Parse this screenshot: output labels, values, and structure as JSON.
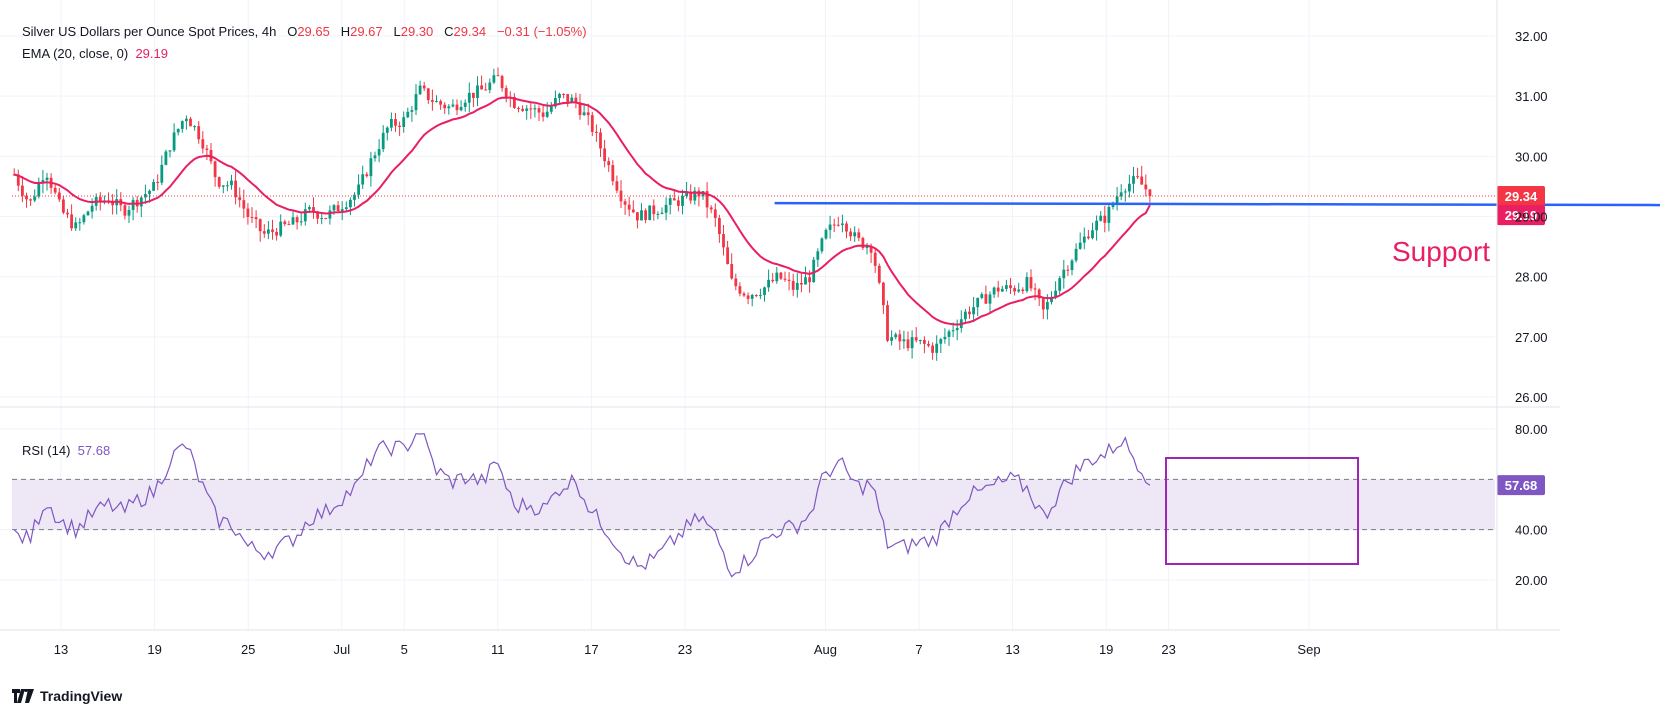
{
  "price_legend": {
    "symbol": "Silver US Dollars per Ounce Spot Prices, 4h",
    "open_label": "O",
    "open": "29.65",
    "high_label": "H",
    "high": "29.67",
    "low_label": "L",
    "low": "29.30",
    "close_label": "C",
    "close": "29.34",
    "change": "−0.31 (−1.05%)"
  },
  "ema_legend": {
    "label": "EMA (20, close, 0)",
    "value": "29.19"
  },
  "rsi_legend": {
    "label": "RSI (14)",
    "value": "57.68"
  },
  "annotation": {
    "support_text": "Support"
  },
  "brand": {
    "name": "TradingView"
  },
  "colors": {
    "up": "#089981",
    "down": "#f23645",
    "ema": "#e91e63",
    "rsi": "#7e57c2",
    "support": "#2962ff",
    "rsi_band": "#ede7f6",
    "box": "#9c27b0"
  },
  "chart_data": [
    {
      "type": "candlestick",
      "title": "Silver US Dollars per Ounce Spot Prices, 4h",
      "x_ticks": [
        "13",
        "19",
        "25",
        "Jul",
        "5",
        "11",
        "17",
        "23",
        "Aug",
        "7",
        "13",
        "19",
        "23",
        "Sep"
      ],
      "y_ticks": [
        "26.00",
        "27.00",
        "28.00",
        "29.00",
        "30.00",
        "31.00",
        "32.00"
      ],
      "ylim": [
        26,
        32
      ],
      "last_price": "29.34",
      "ema_last": "29.19",
      "support_level": 29.19,
      "price_path": [
        [
          "Jun 10",
          29.7
        ],
        [
          "Jun 11",
          29.2
        ],
        [
          "Jun 12",
          29.8
        ],
        [
          "Jun 13",
          29.1
        ],
        [
          "Jun 14",
          28.8
        ],
        [
          "Jun 15",
          29.2
        ],
        [
          "Jun 16",
          29.3
        ],
        [
          "Jun 17",
          29.1
        ],
        [
          "Jun 18",
          29.3
        ],
        [
          "Jun 19",
          29.5
        ],
        [
          "Jun 20",
          30.2
        ],
        [
          "Jun 21",
          30.7
        ],
        [
          "Jun 22",
          30.3
        ],
        [
          "Jun 23",
          29.6
        ],
        [
          "Jun 24",
          29.5
        ],
        [
          "Jun 25",
          29.0
        ],
        [
          "Jun 26",
          28.7
        ],
        [
          "Jun 27",
          28.8
        ],
        [
          "Jun 28",
          28.9
        ],
        [
          "Jun 29",
          29.1
        ],
        [
          "Jun 30",
          29.0
        ],
        [
          "Jul 1",
          29.2
        ],
        [
          "Jul 2",
          29.4
        ],
        [
          "Jul 3",
          30.0
        ],
        [
          "Jul 4",
          30.5
        ],
        [
          "Jul 5",
          30.6
        ],
        [
          "Jul 6",
          31.1
        ],
        [
          "Jul 7",
          30.9
        ],
        [
          "Jul 8",
          30.8
        ],
        [
          "Jul 9",
          31.0
        ],
        [
          "Jul 10",
          31.1
        ],
        [
          "Jul 11",
          31.3
        ],
        [
          "Jul 12",
          30.9
        ],
        [
          "Jul 13",
          30.8
        ],
        [
          "Jul 14",
          30.7
        ],
        [
          "Jul 15",
          31.0
        ],
        [
          "Jul 16",
          30.9
        ],
        [
          "Jul 17",
          30.5
        ],
        [
          "Jul 18",
          29.9
        ],
        [
          "Jul 19",
          29.3
        ],
        [
          "Jul 20",
          29.0
        ],
        [
          "Jul 21",
          29.1
        ],
        [
          "Jul 22",
          29.2
        ],
        [
          "Jul 23",
          29.3
        ],
        [
          "Jul 24",
          29.4
        ],
        [
          "Jul 25",
          28.9
        ],
        [
          "Jul 26",
          27.9
        ],
        [
          "Jul 27",
          27.7
        ],
        [
          "Jul 28",
          27.8
        ],
        [
          "Jul 29",
          28.0
        ],
        [
          "Jul 30",
          27.8
        ],
        [
          "Jul 31",
          28.0
        ],
        [
          "Aug 1",
          28.7
        ],
        [
          "Aug 2",
          29.0
        ],
        [
          "Aug 3",
          28.6
        ],
        [
          "Aug 4",
          28.5
        ],
        [
          "Aug 5",
          27.0
        ],
        [
          "Aug 6",
          26.9
        ],
        [
          "Aug 7",
          26.9
        ],
        [
          "Aug 8",
          26.8
        ],
        [
          "Aug 9",
          27.1
        ],
        [
          "Aug 10",
          27.4
        ],
        [
          "Aug 11",
          27.6
        ],
        [
          "Aug 12",
          27.8
        ],
        [
          "Aug 13",
          27.8
        ],
        [
          "Aug 14",
          27.9
        ],
        [
          "Aug 15",
          27.4
        ],
        [
          "Aug 16",
          28.0
        ],
        [
          "Aug 17",
          28.4
        ],
        [
          "Aug 18",
          28.8
        ],
        [
          "Aug 19",
          29.0
        ],
        [
          "Aug 20",
          29.5
        ],
        [
          "Aug 21",
          29.6
        ],
        [
          "Aug 22",
          29.34
        ]
      ]
    },
    {
      "type": "line",
      "title": "RSI (14)",
      "y_ticks": [
        "20.00",
        "40.00",
        "80.00"
      ],
      "ylim": [
        15,
        85
      ],
      "band": [
        40,
        60
      ],
      "last_value": "57.68",
      "rsi_path": [
        [
          "Jun 10",
          38
        ],
        [
          "Jun 11",
          36
        ],
        [
          "Jun 12",
          52
        ],
        [
          "Jun 13",
          43
        ],
        [
          "Jun 14",
          40
        ],
        [
          "Jun 15",
          46
        ],
        [
          "Jun 16",
          50
        ],
        [
          "Jun 17",
          47
        ],
        [
          "Jun 18",
          52
        ],
        [
          "Jun 19",
          55
        ],
        [
          "Jun 20",
          68
        ],
        [
          "Jun 21",
          74
        ],
        [
          "Jun 22",
          58
        ],
        [
          "Jun 23",
          44
        ],
        [
          "Jun 24",
          42
        ],
        [
          "Jun 25",
          33
        ],
        [
          "Jun 26",
          31
        ],
        [
          "Jun 27",
          33
        ],
        [
          "Jun 28",
          37
        ],
        [
          "Jun 29",
          45
        ],
        [
          "Jun 30",
          47
        ],
        [
          "Jul 1",
          53
        ],
        [
          "Jul 2",
          57
        ],
        [
          "Jul 3",
          70
        ],
        [
          "Jul 4",
          73
        ],
        [
          "Jul 5",
          72
        ],
        [
          "Jul 6",
          80
        ],
        [
          "Jul 7",
          64
        ],
        [
          "Jul 8",
          59
        ],
        [
          "Jul 9",
          61
        ],
        [
          "Jul 10",
          59
        ],
        [
          "Jul 11",
          67
        ],
        [
          "Jul 12",
          49
        ],
        [
          "Jul 13",
          50
        ],
        [
          "Jul 14",
          48
        ],
        [
          "Jul 15",
          57
        ],
        [
          "Jul 16",
          60
        ],
        [
          "Jul 17",
          47
        ],
        [
          "Jul 18",
          40
        ],
        [
          "Jul 19",
          31
        ],
        [
          "Jul 20",
          25
        ],
        [
          "Jul 21",
          28
        ],
        [
          "Jul 22",
          34
        ],
        [
          "Jul 23",
          40
        ],
        [
          "Jul 24",
          45
        ],
        [
          "Jul 25",
          37
        ],
        [
          "Jul 26",
          24
        ],
        [
          "Jul 27",
          28
        ],
        [
          "Jul 28",
          35
        ],
        [
          "Jul 29",
          40
        ],
        [
          "Jul 30",
          41
        ],
        [
          "Jul 31",
          46
        ],
        [
          "Aug 1",
          63
        ],
        [
          "Aug 2",
          66
        ],
        [
          "Aug 3",
          57
        ],
        [
          "Aug 4",
          58
        ],
        [
          "Aug 5",
          34
        ],
        [
          "Aug 6",
          33
        ],
        [
          "Aug 7",
          35
        ],
        [
          "Aug 8",
          36
        ],
        [
          "Aug 9",
          45
        ],
        [
          "Aug 10",
          53
        ],
        [
          "Aug 11",
          55
        ],
        [
          "Aug 12",
          58
        ],
        [
          "Aug 13",
          60
        ],
        [
          "Aug 14",
          56
        ],
        [
          "Aug 15",
          45
        ],
        [
          "Aug 16",
          55
        ],
        [
          "Aug 17",
          63
        ],
        [
          "Aug 18",
          68
        ],
        [
          "Aug 19",
          70
        ],
        [
          "Aug 20",
          76
        ],
        [
          "Aug 21",
          67
        ],
        [
          "Aug 22",
          57.68
        ]
      ]
    }
  ]
}
